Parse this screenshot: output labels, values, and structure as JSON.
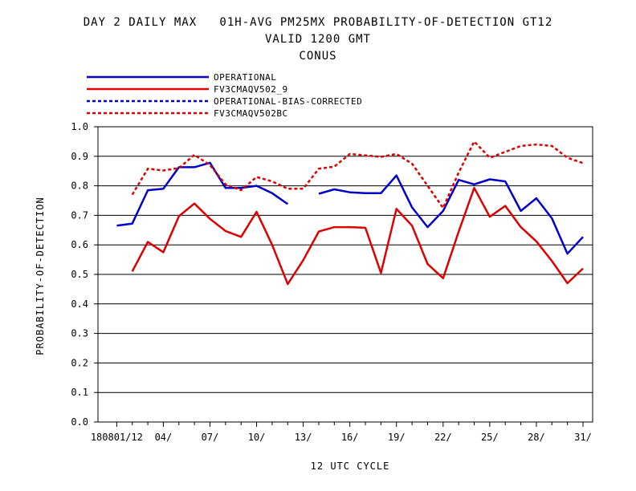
{
  "title": {
    "line1": "DAY 2 DAILY MAX   01H-AVG PM25MX PROBABILITY-OF-DETECTION GT12",
    "line2": "VALID 1200 GMT",
    "line3": "CONUS"
  },
  "colors": {
    "operational": "#0000cc",
    "fv3": "#dd0000",
    "grid": "#000000"
  },
  "chart_data": {
    "type": "line",
    "xlabel": "12 UTC CYCLE",
    "ylabel": "PROBABILITY-OF-DETECTION",
    "ylim": [
      0.0,
      1.0
    ],
    "xlim": [
      0,
      31
    ],
    "yticks": [
      "0.0",
      "0.1",
      "0.2",
      "0.3",
      "0.4",
      "0.5",
      "0.6",
      "0.7",
      "0.8",
      "0.9",
      "1.0"
    ],
    "xticks": [
      {
        "x": 1,
        "label": "180801/12"
      },
      {
        "x": 4,
        "label": "04/"
      },
      {
        "x": 7,
        "label": "07/"
      },
      {
        "x": 10,
        "label": "10/"
      },
      {
        "x": 13,
        "label": "13/"
      },
      {
        "x": 16,
        "label": "16/"
      },
      {
        "x": 19,
        "label": "19/"
      },
      {
        "x": 22,
        "label": "22/"
      },
      {
        "x": 25,
        "label": "25/"
      },
      {
        "x": 28,
        "label": "28/"
      },
      {
        "x": 31,
        "label": "31/"
      }
    ],
    "grid": "horizontal",
    "legend_position": "top-left",
    "series": [
      {
        "name": "OPERATIONAL",
        "color": "#0000cc",
        "style": "solid",
        "x": [
          1,
          2,
          3,
          4,
          5,
          6,
          7,
          8,
          9,
          10,
          11,
          12,
          null,
          14,
          15,
          16,
          17,
          18,
          19,
          20,
          21,
          22,
          23,
          24,
          25,
          26,
          27,
          28,
          29,
          30,
          31
        ],
        "values": [
          0.665,
          0.672,
          0.785,
          0.79,
          0.863,
          0.863,
          0.878,
          0.793,
          0.793,
          0.8,
          0.775,
          0.738,
          null,
          0.773,
          0.788,
          0.778,
          0.775,
          0.775,
          0.835,
          0.727,
          0.66,
          0.715,
          0.82,
          0.805,
          0.822,
          0.815,
          0.715,
          0.758,
          0.69,
          0.57,
          0.627
        ]
      },
      {
        "name": "FV3CMAQV502_9",
        "color": "#dd0000",
        "style": "solid",
        "x": [
          2,
          3,
          4,
          5,
          6,
          7,
          8,
          9,
          10,
          11,
          12,
          13,
          14,
          15,
          16,
          17,
          18,
          19,
          20,
          21,
          22,
          23,
          24,
          25,
          26,
          27,
          28,
          29,
          30,
          31
        ],
        "values": [
          0.51,
          0.61,
          0.575,
          0.697,
          0.74,
          0.688,
          0.647,
          0.627,
          0.712,
          0.6,
          0.467,
          0.548,
          0.645,
          0.66,
          0.66,
          0.658,
          0.505,
          0.722,
          0.665,
          0.535,
          0.487,
          0.645,
          0.793,
          0.695,
          0.732,
          0.66,
          0.612,
          0.545,
          0.47,
          0.52
        ]
      },
      {
        "name": "OPERATIONAL-BIAS-CORRECTED",
        "color": "#0000cc",
        "style": "dashed",
        "x": [],
        "values": []
      },
      {
        "name": "FV3CMAQV502BC",
        "color": "#dd0000",
        "style": "dashed",
        "x": [
          2,
          3,
          4,
          5,
          6,
          7,
          8,
          9,
          10,
          11,
          12,
          13,
          14,
          15,
          16,
          17,
          18,
          19,
          20,
          21,
          22,
          23,
          24,
          25,
          26,
          27,
          28,
          29,
          30,
          31
        ],
        "values": [
          0.77,
          0.858,
          0.852,
          0.86,
          0.905,
          0.87,
          0.805,
          0.785,
          0.83,
          0.815,
          0.79,
          0.79,
          0.858,
          0.865,
          0.908,
          0.903,
          0.898,
          0.908,
          0.875,
          0.8,
          0.725,
          0.845,
          0.95,
          0.895,
          0.915,
          0.935,
          0.94,
          0.935,
          0.895,
          0.877
        ]
      }
    ]
  }
}
